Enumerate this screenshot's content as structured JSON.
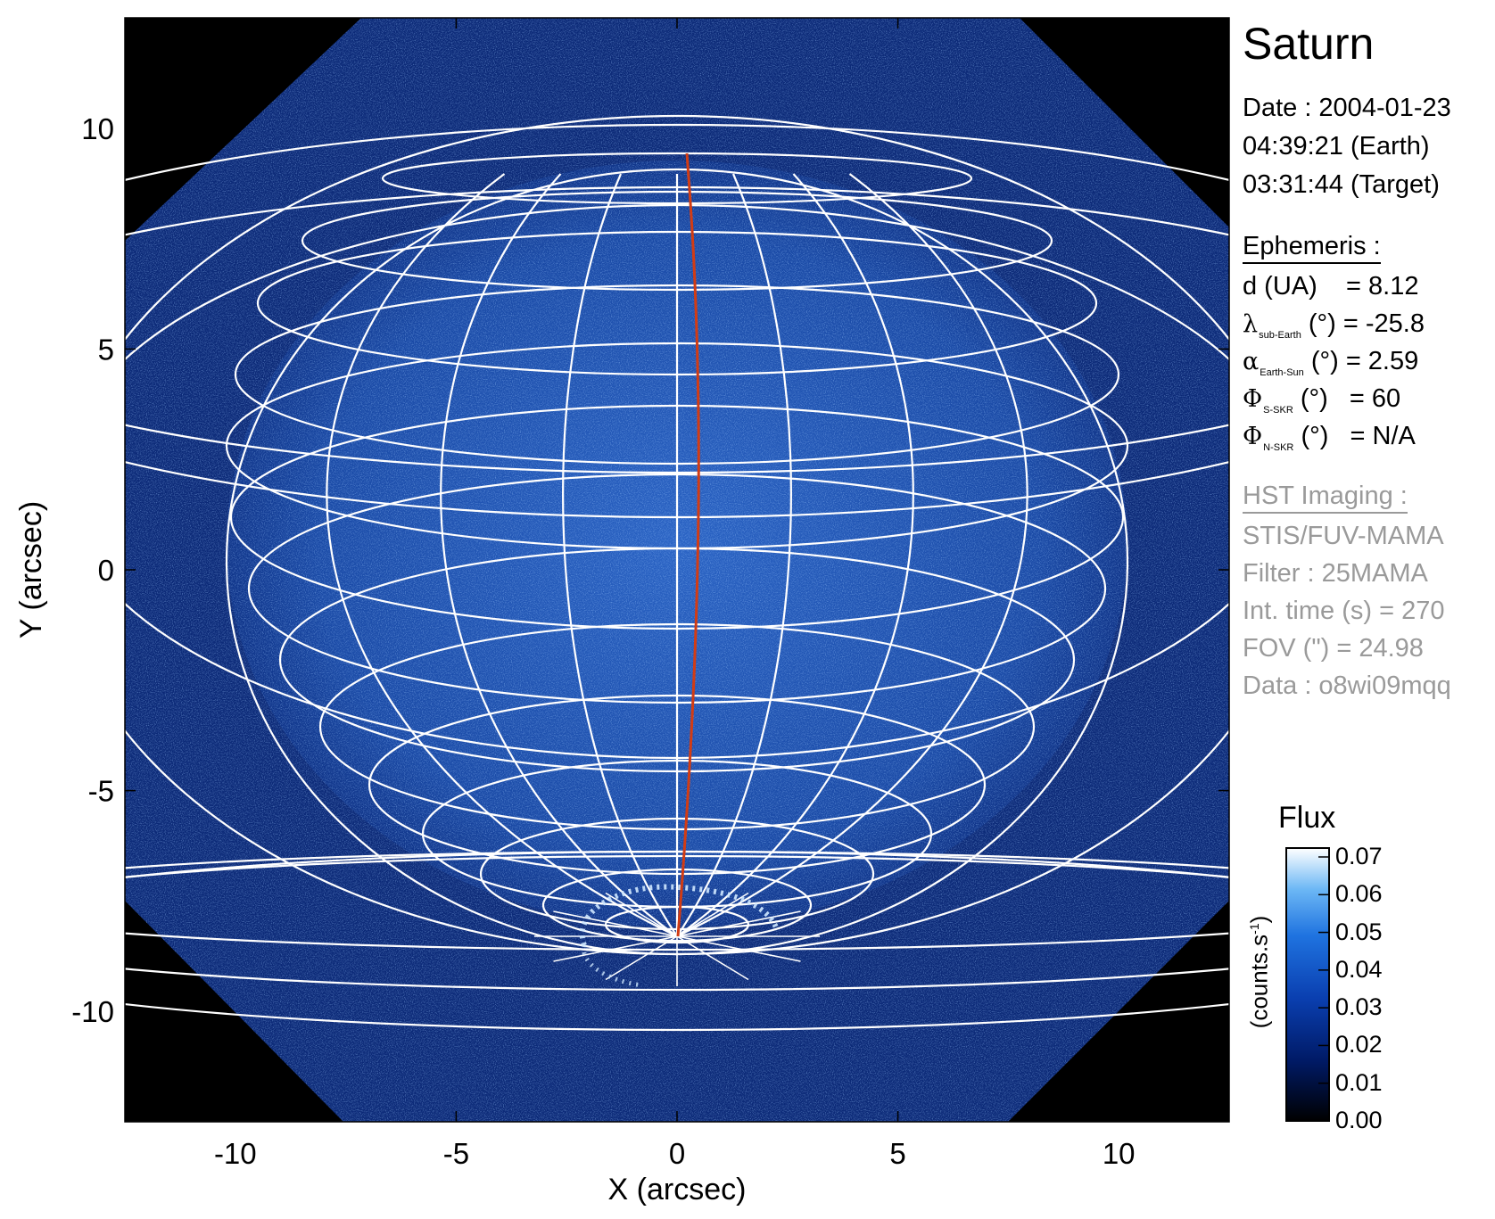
{
  "title": "Saturn",
  "date": {
    "date_line": "Date : 2004-01-23",
    "earth_time": "04:39:21 (Earth)",
    "target_time": "03:31:44 (Target)"
  },
  "ephemeris": {
    "header": "Ephemeris :",
    "d": {
      "label": "d (UA)",
      "value": "= 8.12"
    },
    "lambda": {
      "symbol": "λ",
      "sub": "sub-Earth",
      "unit": "(°)",
      "value": "= -25.8"
    },
    "alpha": {
      "symbol": "α",
      "sub": "Earth-Sun",
      "unit": "(°)",
      "value": "= 2.59"
    },
    "phi_s": {
      "symbol": "Φ",
      "sub": "S-SKR",
      "unit": "(°)",
      "value": "= 60"
    },
    "phi_n": {
      "symbol": "Φ",
      "sub": "N-SKR",
      "unit": "(°)",
      "value": "= N/A"
    }
  },
  "imaging": {
    "header": "HST Imaging :",
    "instrument": "STIS/FUV-MAMA",
    "filter": "Filter : 25MAMA",
    "int_time": "Int. time (s) = 270",
    "fov": "FOV (\") = 24.98",
    "data": "Data : o8wi09mqq"
  },
  "axes": {
    "xlabel": "X (arcsec)",
    "ylabel": "Y (arcsec)",
    "xlim": [
      -12.5,
      12.5
    ],
    "ylim": [
      -12.5,
      12.5
    ],
    "xticks": [
      "-10",
      "-5",
      "0",
      "5",
      "10"
    ],
    "yticks": [
      "10",
      "5",
      "0",
      "-5",
      "-10"
    ]
  },
  "colorbar": {
    "title": "Flux",
    "units_main": "(counts.s",
    "units_sup": "-1",
    "units_close": ")",
    "ticks": [
      "0.07",
      "0.06",
      "0.05",
      "0.04",
      "0.03",
      "0.02",
      "0.01",
      "0.00"
    ],
    "colors": [
      "#000000",
      "#001a66",
      "#0a3fb0",
      "#1f73e0",
      "#6db8f5",
      "#ffffff"
    ]
  },
  "colors": {
    "image_background": "#0c2a78",
    "grid": "#ffffff",
    "meridian": "#d23c14"
  }
}
